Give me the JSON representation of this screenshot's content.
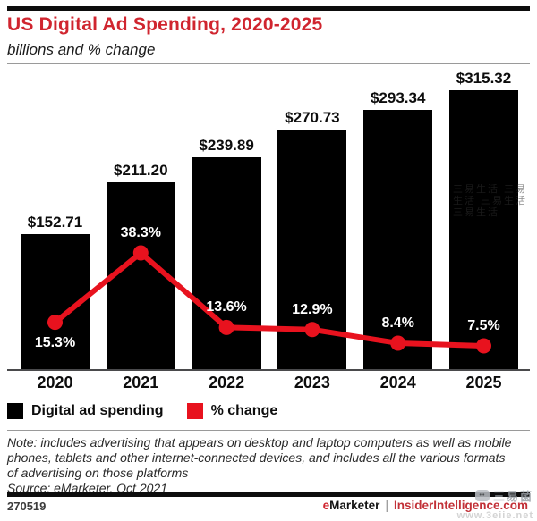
{
  "header": {
    "title": "US Digital Ad Spending, 2020-2025",
    "subtitle": "billions and % change"
  },
  "chart_data": {
    "type": "bar",
    "categories": [
      "2020",
      "2021",
      "2022",
      "2023",
      "2024",
      "2025"
    ],
    "series": [
      {
        "name": "Digital ad spending",
        "type": "bar",
        "unit": "$ billions",
        "values": [
          152.71,
          211.2,
          239.89,
          270.73,
          293.34,
          315.32
        ],
        "labels": [
          "$152.71",
          "$211.20",
          "$239.89",
          "$270.73",
          "$293.34",
          "$315.32"
        ],
        "color": "#000000"
      },
      {
        "name": "% change",
        "type": "line",
        "unit": "%",
        "values": [
          15.3,
          38.3,
          13.6,
          12.9,
          8.4,
          7.5
        ],
        "labels": [
          "15.3%",
          "38.3%",
          "13.6%",
          "12.9%",
          "8.4%",
          "7.5%"
        ],
        "color": "#e8121e"
      }
    ],
    "title": "US Digital Ad Spending, 2020-2025",
    "xlabel": "",
    "ylabel": "",
    "ylim_bars": [
      0,
      320
    ],
    "grid": false,
    "legend_position": "bottom-left"
  },
  "legend": {
    "items": [
      {
        "label": "Digital ad spending",
        "color": "#000000"
      },
      {
        "label": "% change",
        "color": "#e8121e"
      }
    ]
  },
  "note": {
    "note_text": "Note: includes advertising that appears on desktop and laptop computers as well as mobile phones, tablets and other internet-connected devices, and includes all the various formats of advertising on those platforms",
    "source_text": "Source: eMarketer, Oct 2021"
  },
  "footer": {
    "chart_id": "270519",
    "brand_e": "e",
    "brand_rest": "Marketer",
    "separator": "|",
    "brand_site": "InsiderIntelligence.com"
  },
  "watermark": {
    "bar_text": "三易生活 三易生活 三易生活 三易生活",
    "footer_logo_face": "••",
    "footer_name": "三易菌",
    "footer_url": "www.3eiie.net"
  },
  "colors": {
    "title_red": "#d0252f",
    "line_red": "#e8121e",
    "bar_black": "#000000",
    "axis_gray": "#4a4a4c",
    "site_red": "#c23138"
  }
}
